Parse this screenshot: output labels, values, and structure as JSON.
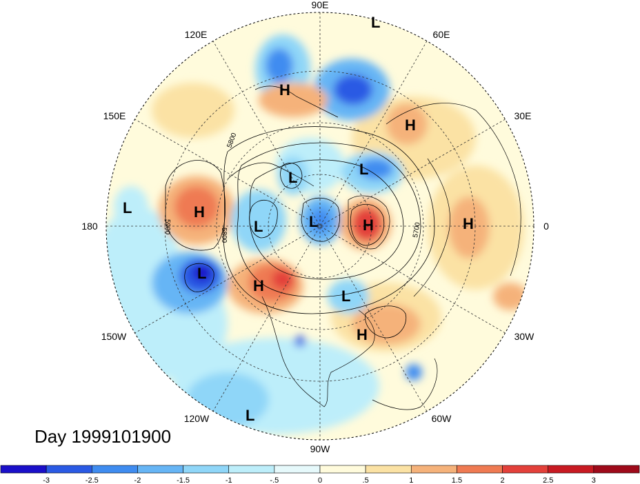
{
  "title": "Day 1999101900",
  "longitude_labels": {
    "e90": "90E",
    "e60": "60E",
    "e30": "30E",
    "zero": "0",
    "w30": "30W",
    "w60": "60W",
    "w90": "90W",
    "w120": "120W",
    "w150": "150W",
    "d180": "180",
    "e150": "150E",
    "e120": "120E"
  },
  "contour_labels": {
    "c5800a": "5800",
    "c5800b": "5800",
    "c5900": "5900",
    "c5700": "5700"
  },
  "pressure_centers": [
    {
      "type": "L",
      "name": "low-north-pole-edge"
    },
    {
      "type": "H",
      "name": "high-siberia"
    },
    {
      "type": "H",
      "name": "high-europe"
    },
    {
      "type": "L",
      "name": "low-east-siberia"
    },
    {
      "type": "L",
      "name": "low-kara-sea"
    },
    {
      "type": "L",
      "name": "low-west-pacific"
    },
    {
      "type": "H",
      "name": "high-dateline"
    },
    {
      "type": "L",
      "name": "low-bering"
    },
    {
      "type": "L",
      "name": "low-arctic"
    },
    {
      "type": "H",
      "name": "high-greenland"
    },
    {
      "type": "H",
      "name": "high-africa"
    },
    {
      "type": "L",
      "name": "low-gulf-alaska"
    },
    {
      "type": "H",
      "name": "high-alaska-coast"
    },
    {
      "type": "L",
      "name": "low-hudson"
    },
    {
      "type": "H",
      "name": "high-atlantic"
    },
    {
      "type": "L",
      "name": "low-east-pacific"
    }
  ],
  "colorbar": {
    "labels": [
      "-3",
      "-2.5",
      "-2",
      "-1.5",
      "-1",
      "-.5",
      "0",
      ".5",
      "1",
      "1.5",
      "2",
      "2.5",
      "3"
    ],
    "colors": [
      "#1a0fc9",
      "#2a5ae4",
      "#3f8cf0",
      "#66b5f5",
      "#8fd6f8",
      "#bdeefa",
      "#e6f9fb",
      "#fffbdc",
      "#fbe2a4",
      "#f5b27a",
      "#ef7a52",
      "#e3403a",
      "#c81a22",
      "#9e0a1a"
    ]
  }
}
